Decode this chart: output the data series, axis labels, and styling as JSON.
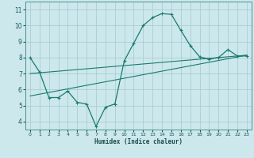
{
  "xlabel": "Humidex (Indice chaleur)",
  "ylabel": "",
  "bg_color": "#cce8ec",
  "grid_color": "#aacdd4",
  "line_color": "#1a7a6e",
  "xlim": [
    -0.5,
    23.5
  ],
  "ylim": [
    3.5,
    11.5
  ],
  "xticks": [
    0,
    1,
    2,
    3,
    4,
    5,
    6,
    7,
    8,
    9,
    10,
    11,
    12,
    13,
    14,
    15,
    16,
    17,
    18,
    19,
    20,
    21,
    22,
    23
  ],
  "yticks": [
    4,
    5,
    6,
    7,
    8,
    9,
    10,
    11
  ],
  "curve_x": [
    0,
    1,
    2,
    3,
    4,
    5,
    6,
    7,
    8,
    9,
    10,
    11,
    12,
    13,
    14,
    15,
    16,
    17,
    18,
    19,
    20,
    21,
    22,
    23
  ],
  "curve_y": [
    8.0,
    7.1,
    5.5,
    5.5,
    5.9,
    5.2,
    5.1,
    3.7,
    4.9,
    5.1,
    7.8,
    8.9,
    10.0,
    10.5,
    10.75,
    10.7,
    9.7,
    8.75,
    8.05,
    7.9,
    8.0,
    8.5,
    8.1,
    8.1
  ],
  "line1_x": [
    0,
    23
  ],
  "line1_y": [
    7.0,
    8.15
  ],
  "line2_x": [
    0,
    23
  ],
  "line2_y": [
    5.6,
    8.15
  ]
}
